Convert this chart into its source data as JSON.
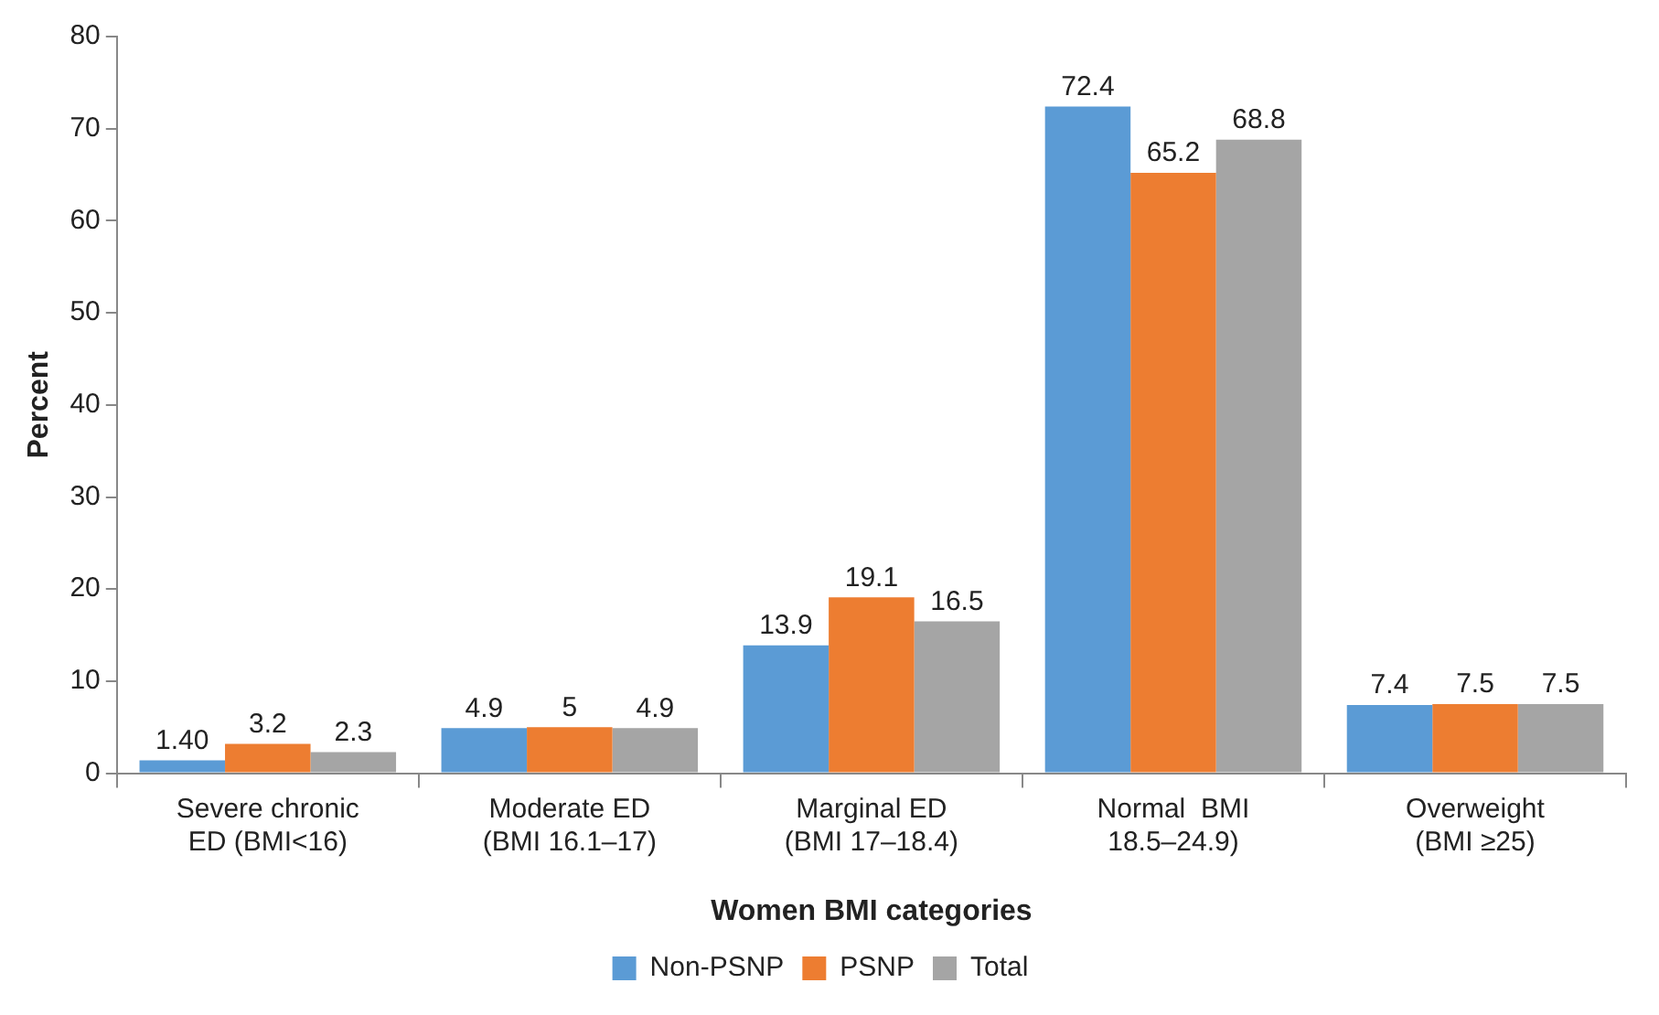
{
  "chart_data": {
    "type": "bar",
    "xlabel": "Women BMI categories",
    "ylabel": "Percent",
    "categories": [
      "Severe chronic\nED (BMI<16)",
      "Moderate ED\n(BMI 16.1–17)",
      "Marginal ED\n(BMI 17–18.4)",
      "Normal  BMI\n18.5–24.9)",
      "Overweight\n(BMI ≥25)"
    ],
    "series": [
      {
        "name": "Non-PSNP",
        "color": "#5b9bd5",
        "values": [
          1.4,
          4.9,
          13.9,
          72.4,
          7.4
        ],
        "value_labels": [
          "1.40",
          "4.9",
          "13.9",
          "72.4",
          "7.4"
        ]
      },
      {
        "name": "PSNP",
        "color": "#ed7d31",
        "values": [
          3.2,
          5,
          19.1,
          65.2,
          7.5
        ],
        "value_labels": [
          "3.2",
          "5",
          "19.1",
          "65.2",
          "7.5"
        ]
      },
      {
        "name": "Total",
        "color": "#a5a5a5",
        "values": [
          2.3,
          4.9,
          16.5,
          68.8,
          7.5
        ],
        "value_labels": [
          "2.3",
          "4.9",
          "16.5",
          "68.8",
          "7.5"
        ]
      }
    ],
    "ylim": [
      0,
      80
    ],
    "yticks": [
      0,
      10,
      20,
      30,
      40,
      50,
      60,
      70,
      80
    ],
    "grid": false,
    "legend": "bottom"
  }
}
